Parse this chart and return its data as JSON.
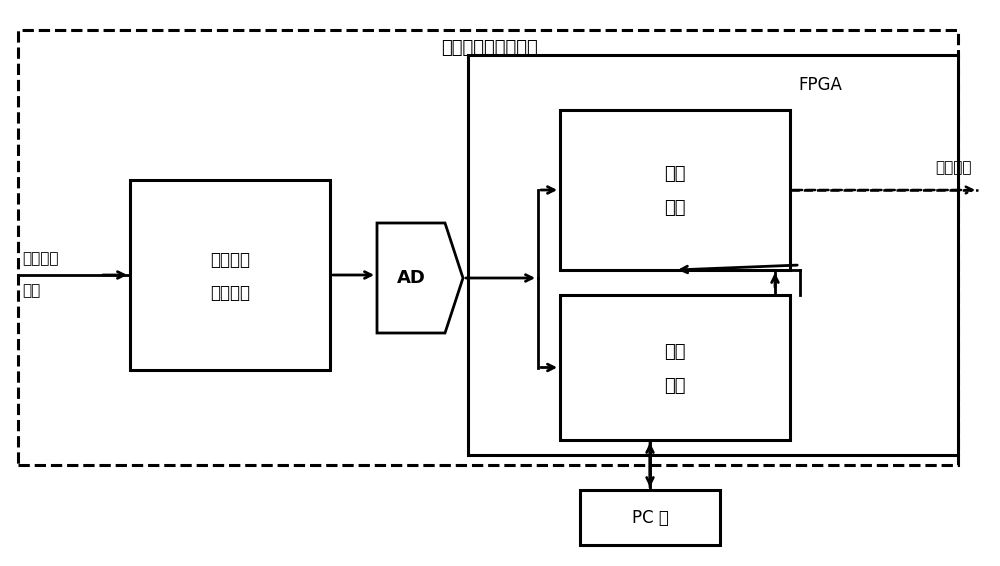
{
  "title": "需要补偿的中频模块",
  "background_color": "#ffffff",
  "fig_width": 10.0,
  "fig_height": 5.66,
  "dpi": 100,
  "text_if_input": "中频信号\n输入",
  "text_cond_line1": "中频信号",
  "text_cond_line2": "调理电路",
  "text_ad": "AD",
  "text_fpga": "FPGA",
  "text_comp_line1": "补偿",
  "text_comp_line2": "滤波",
  "text_amp_line1": "幅度",
  "text_amp_line2": "检波",
  "text_pc": "PC 机",
  "text_post": "后续处理",
  "font_size_title": 13,
  "font_size_label": 12,
  "font_size_small": 11
}
